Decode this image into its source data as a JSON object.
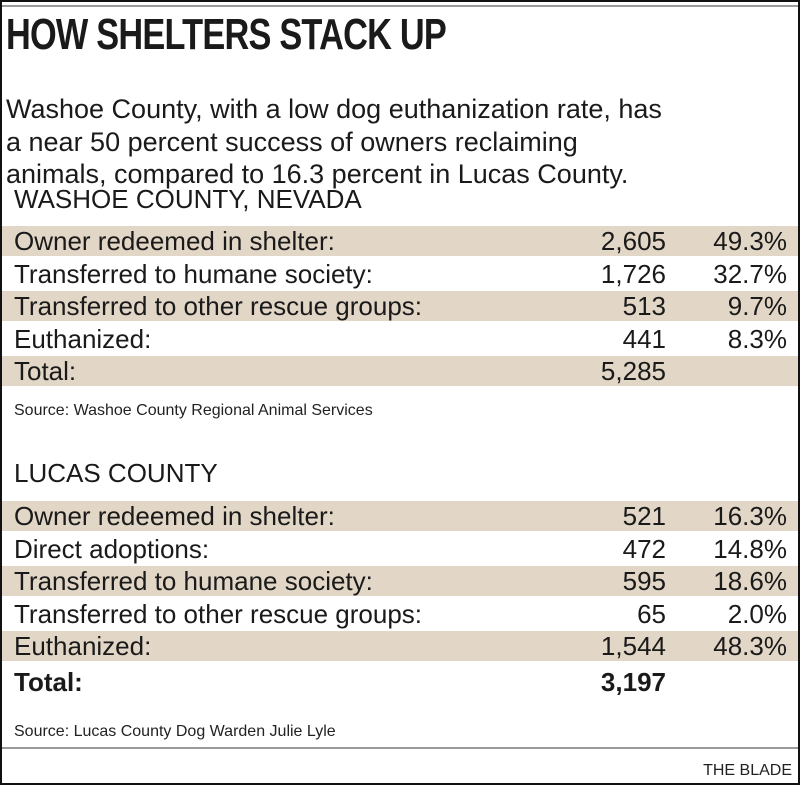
{
  "chart_data": [
    {
      "type": "table",
      "title": "HOW SHELTERS STACK UP",
      "subtitle": "Washoe County, with a low dog euthanization rate, has a near 50 percent success of owners reclaiming animals, compared to 16.3 percent in Lucas County.",
      "subtitle_lines": [
        "Washoe County, with a low dog euthanization rate, has",
        "a near 50 percent success of owners reclaiming",
        "animals, compared to 16.3 percent in Lucas County."
      ],
      "section": "WASHOE COUNTY, NEVADA",
      "rows": [
        {
          "label": "Owner redeemed in shelter:",
          "count": "2,605",
          "percent": "49.3%"
        },
        {
          "label": "Transferred to humane society:",
          "count": "1,726",
          "percent": "32.7%"
        },
        {
          "label": "Transferred to other rescue groups:",
          "count": "513",
          "percent": "9.7%"
        },
        {
          "label": "Euthanized:",
          "count": "441",
          "percent": "8.3%"
        },
        {
          "label": "Total:",
          "count": "5,285",
          "percent": ""
        }
      ],
      "source": "Source: Washoe County Regional Animal Services"
    },
    {
      "type": "table",
      "section": "LUCAS COUNTY",
      "rows": [
        {
          "label": "Owner redeemed in shelter:",
          "count": "521",
          "percent": "16.3%"
        },
        {
          "label": "Direct adoptions:",
          "count": "472",
          "percent": "14.8%"
        },
        {
          "label": "Transferred to humane society:",
          "count": "595",
          "percent": "18.6%"
        },
        {
          "label": "Transferred to other rescue groups:",
          "count": "65",
          "percent": "2.0%"
        },
        {
          "label": "Euthanized:",
          "count": "1,544",
          "percent": "48.3%"
        },
        {
          "label": "Total:",
          "count": "3,197",
          "percent": ""
        }
      ],
      "source": "Source: Lucas County Dog Warden Julie Lyle"
    }
  ],
  "credit": "THE BLADE",
  "colors": {
    "band": "#e2d6c6",
    "text": "#1a1a1a"
  }
}
